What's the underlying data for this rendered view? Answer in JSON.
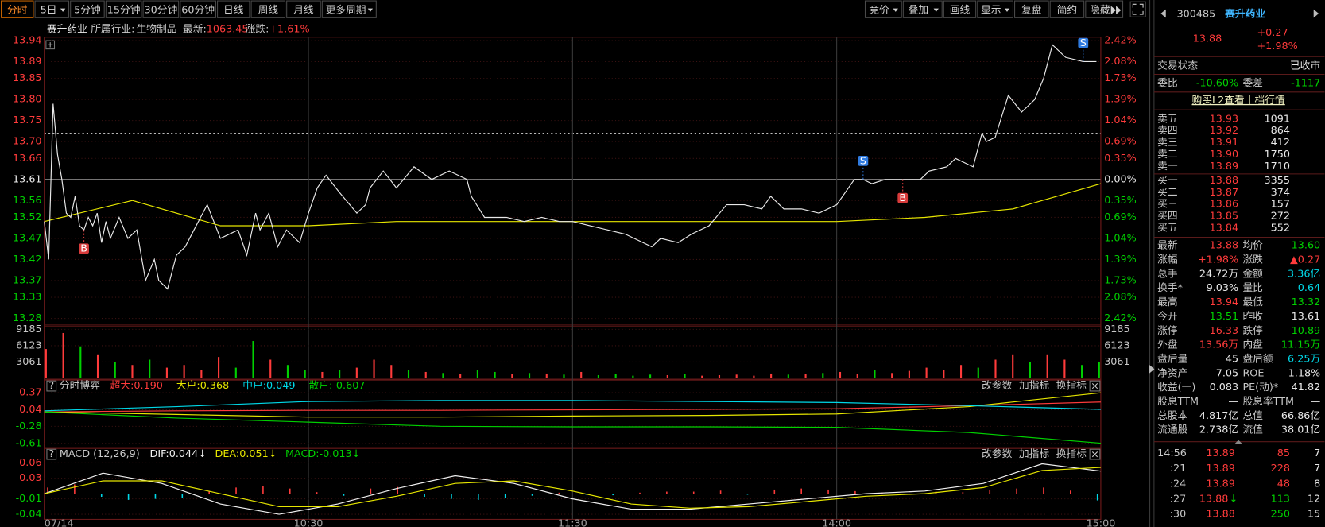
{
  "toolbar": {
    "tabs": [
      "分时",
      "5日",
      "5分钟",
      "15分钟",
      "30分钟",
      "60分钟",
      "日线",
      "周线",
      "月线",
      "更多周期"
    ],
    "tools": [
      "竞价",
      "叠加",
      "画线",
      "显示",
      "复盘",
      "简约",
      "隐藏"
    ]
  },
  "info": {
    "name": "赛升药业",
    "industry_label": "所属行业:",
    "industry": "生物制品",
    "latest_label": "最新:",
    "latest": "1063.45",
    "change_label": "涨跌:",
    "change": "+1.61%"
  },
  "price_chart": {
    "ylim": [
      13.28,
      13.94
    ],
    "yticks": [
      13.94,
      13.89,
      13.85,
      {
        "value": 13.8,
        "label": "13.80"
      },
      13.75,
      {
        "value": 13.7,
        "label": "13.70"
      },
      13.66,
      13.61,
      13.56,
      13.52,
      13.47,
      13.42,
      13.37,
      13.33,
      13.28
    ],
    "pct_labels": [
      "2.42%",
      "2.08%",
      "1.73%",
      "1.39%",
      "1.04%",
      "0.69%",
      "0.35%",
      "0.00%",
      "0.35%",
      "0.69%",
      "1.04%",
      "1.39%",
      "1.73%",
      "2.08%",
      "2.42%"
    ],
    "prev_close": 13.61,
    "ref_level": 13.72,
    "xlim": [
      0,
      240
    ],
    "xticks": [
      {
        "value": 0,
        "label": "07/14"
      },
      {
        "value": 60,
        "label": "10:30"
      },
      {
        "value": 120,
        "label": "11:30"
      },
      {
        "value": 180,
        "label": "14:00"
      },
      {
        "value": 240,
        "label": "15:00"
      }
    ],
    "t": [
      0,
      1,
      2,
      3,
      4,
      5,
      6,
      7,
      8,
      9,
      10,
      11,
      12,
      13,
      14,
      15,
      17,
      19,
      21,
      23,
      25,
      26,
      28,
      30,
      32,
      34,
      37,
      40,
      44,
      46,
      48,
      49,
      51,
      53,
      55,
      58,
      60,
      62,
      64,
      67,
      71,
      73,
      74,
      77,
      80,
      84,
      88,
      92,
      96,
      97,
      100,
      105,
      109,
      113,
      117,
      120,
      124,
      128,
      132,
      136,
      138,
      140,
      144,
      147,
      151,
      155,
      159,
      163,
      165,
      168,
      172,
      176,
      180,
      184,
      186,
      188,
      191,
      195,
      199,
      201,
      205,
      207,
      211,
      213,
      214,
      216,
      219,
      222,
      225,
      227,
      229,
      232,
      236,
      239
    ],
    "price": [
      13.51,
      13.42,
      13.79,
      13.67,
      13.61,
      13.53,
      13.52,
      13.57,
      13.5,
      13.49,
      13.52,
      13.5,
      13.53,
      13.46,
      13.51,
      13.47,
      13.52,
      13.47,
      13.49,
      13.37,
      13.42,
      13.37,
      13.35,
      13.43,
      13.45,
      13.49,
      13.55,
      13.47,
      13.49,
      13.43,
      13.53,
      13.49,
      13.53,
      13.45,
      13.49,
      13.46,
      13.53,
      13.59,
      13.62,
      13.58,
      13.53,
      13.55,
      13.59,
      13.63,
      13.59,
      13.64,
      13.61,
      13.63,
      13.61,
      13.57,
      13.52,
      13.52,
      13.51,
      13.52,
      13.51,
      13.51,
      13.5,
      13.49,
      13.48,
      13.46,
      13.45,
      13.47,
      13.46,
      13.48,
      13.5,
      13.55,
      13.55,
      13.54,
      13.57,
      13.54,
      13.54,
      13.53,
      13.55,
      13.61,
      13.61,
      13.6,
      13.61,
      13.61,
      13.61,
      13.63,
      13.64,
      13.66,
      13.64,
      13.72,
      13.7,
      13.71,
      13.81,
      13.77,
      13.8,
      13.85,
      13.93,
      13.9,
      13.89,
      13.89
    ],
    "avg_t": [
      0,
      20,
      40,
      60,
      80,
      100,
      120,
      140,
      160,
      180,
      200,
      220,
      240
    ],
    "avg": [
      13.51,
      13.56,
      13.5,
      13.5,
      13.51,
      13.51,
      13.51,
      13.51,
      13.51,
      13.51,
      13.52,
      13.54,
      13.6
    ],
    "price_color": "#e8e8e8",
    "avg_color": "#e6e600",
    "markers": {
      "buy": {
        "label": "B",
        "color": "#d83b3b",
        "indexes": [
          9,
          77
        ]
      },
      "sell": {
        "label": "S",
        "color": "#2f7be0",
        "indexes": [
          74,
          92
        ]
      }
    }
  },
  "volume": {
    "ylim": [
      0,
      9185
    ],
    "yticks": [
      9185,
      6123,
      3061
    ],
    "values": [
      5500,
      8500,
      6000,
      4500,
      3000,
      2500,
      3500,
      2000,
      2500,
      1500,
      4000,
      2000,
      7000,
      3500,
      2500,
      1500,
      1200,
      1500,
      2000,
      3500,
      2500,
      1500,
      1200,
      1000,
      800,
      1500,
      1200,
      800,
      1000,
      900,
      700,
      1200,
      600,
      800,
      500,
      700,
      600,
      800,
      500,
      600,
      700,
      500,
      900,
      700,
      800,
      1000,
      1200,
      800,
      1500,
      1000,
      1400,
      2000,
      1500,
      2500,
      2000,
      3500,
      4500,
      3000,
      4500,
      3500,
      2500,
      3000
    ]
  },
  "game_panel": {
    "title": "分时博弈",
    "ylim": [
      -0.61,
      0.37
    ],
    "yticks": [
      0.37,
      0.04,
      -0.28,
      -0.61
    ],
    "buttons": [
      "改参数",
      "加指标",
      "换指标"
    ],
    "lines": [
      {
        "label": "超大:0.190–",
        "color": "#ff3b3b",
        "values": [
          0.0,
          0.02,
          0.03,
          0.03,
          0.04,
          0.05,
          0.06,
          0.12,
          0.19
        ]
      },
      {
        "label": "大户:0.368–",
        "color": "#e6e600",
        "values": [
          0.0,
          -0.05,
          -0.1,
          -0.1,
          -0.08,
          -0.07,
          -0.04,
          0.1,
          0.368
        ]
      },
      {
        "label": "中户:0.049–",
        "color": "#00d8e8",
        "values": [
          0.02,
          0.1,
          0.2,
          0.22,
          0.22,
          0.2,
          0.18,
          0.12,
          0.049
        ]
      },
      {
        "label": "散户:-0.607–",
        "color": "#00d000",
        "values": [
          0.0,
          -0.12,
          -0.2,
          -0.28,
          -0.29,
          -0.29,
          -0.3,
          -0.4,
          -0.607
        ]
      }
    ]
  },
  "macd_panel": {
    "title": "MACD (12,26,9)",
    "ylim": [
      -0.04,
      0.06
    ],
    "yticks": [
      0.06,
      0.03,
      -0.01,
      -0.04
    ],
    "buttons": [
      "改参数",
      "加指标",
      "换指标"
    ],
    "lines": [
      {
        "label": "DIF:0.044↓",
        "color": "#f0f0f0",
        "values": [
          0.0,
          0.04,
          0.02,
          -0.02,
          -0.04,
          -0.02,
          0.01,
          0.035,
          0.02,
          -0.01,
          -0.03,
          -0.03,
          -0.02,
          -0.01,
          0.0,
          0.005,
          0.02,
          0.058,
          0.044
        ]
      },
      {
        "label": "DEA:0.051↓",
        "color": "#e6e600",
        "values": [
          0.0,
          0.025,
          0.025,
          0.0,
          -0.025,
          -0.025,
          -0.005,
          0.02,
          0.025,
          0.005,
          -0.02,
          -0.028,
          -0.025,
          -0.015,
          -0.005,
          0.0,
          0.012,
          0.045,
          0.051
        ]
      }
    ],
    "hist": {
      "label": "MACD:-0.013↓",
      "color": "#00d000",
      "up_color": "#ff3b3b",
      "down_color": "#00d8e8",
      "values": [
        0.012,
        0.018,
        -0.006,
        -0.012,
        -0.01,
        -0.008,
        0.005,
        0.012,
        0.015,
        0.01,
        0.003,
        -0.004,
        0.01,
        0.013,
        -0.006,
        -0.01,
        -0.012,
        -0.008,
        -0.004,
        0.002,
        -0.002,
        -0.003,
        0.002,
        0.004,
        0.004,
        0.006,
        -0.002,
        0.008,
        0.01,
        0.008,
        0.005,
        0.002,
        -0.002,
        0.004,
        0.003,
        0.008,
        0.01,
        0.012,
        0.006,
        -0.013
      ]
    }
  },
  "quote": {
    "code": "300485",
    "name": "赛升药业",
    "price": "13.88",
    "change": "+0.27",
    "pct": "+1.98%"
  },
  "status": {
    "label": "交易状态",
    "value": "已收市"
  },
  "weibi": {
    "label": "委比",
    "value": "-10.60%",
    "diff_label": "委差",
    "diff": "-1117"
  },
  "l2_link": "购买L2查看十档行情",
  "order_book": {
    "price_color": "#ff3b3b",
    "asks": [
      {
        "label": "卖五",
        "price": "13.93",
        "vol": "1091"
      },
      {
        "label": "卖四",
        "price": "13.92",
        "vol": "864"
      },
      {
        "label": "卖三",
        "price": "13.91",
        "vol": "412"
      },
      {
        "label": "卖二",
        "price": "13.90",
        "vol": "1750"
      },
      {
        "label": "卖一",
        "price": "13.89",
        "vol": "1710"
      }
    ],
    "bids": [
      {
        "label": "买一",
        "price": "13.88",
        "vol": "3355"
      },
      {
        "label": "买二",
        "price": "13.87",
        "vol": "374"
      },
      {
        "label": "买三",
        "price": "13.86",
        "vol": "157"
      },
      {
        "label": "买四",
        "price": "13.85",
        "vol": "272"
      },
      {
        "label": "买五",
        "price": "13.84",
        "vol": "552"
      }
    ]
  },
  "stats": [
    [
      {
        "label": "最新",
        "value": "13.88",
        "color": "#ff3b3b"
      },
      {
        "label": "均价",
        "value": "13.60",
        "color": "#00d000"
      }
    ],
    [
      {
        "label": "涨幅",
        "value": "+1.98%",
        "color": "#ff3b3b"
      },
      {
        "label": "涨跌",
        "value": "▲0.27",
        "color": "#ff3b3b"
      }
    ],
    [
      {
        "label": "总手",
        "value": "24.72万",
        "color": "#e8e8e8"
      },
      {
        "label": "金额",
        "value": "3.36亿",
        "color": "#00d8e8"
      }
    ],
    [
      {
        "label": "换手*",
        "value": "9.03%",
        "color": "#e8e8e8"
      },
      {
        "label": "量比",
        "value": "0.64",
        "color": "#00d8e8"
      }
    ],
    [
      {
        "label": "最高",
        "value": "13.94",
        "color": "#ff3b3b"
      },
      {
        "label": "最低",
        "value": "13.32",
        "color": "#00d000"
      }
    ],
    [
      {
        "label": "今开",
        "value": "13.51",
        "color": "#00d000"
      },
      {
        "label": "昨收",
        "value": "13.61",
        "color": "#e8e8e8"
      }
    ],
    [
      {
        "label": "涨停",
        "value": "16.33",
        "color": "#ff3b3b"
      },
      {
        "label": "跌停",
        "value": "10.89",
        "color": "#00d000"
      }
    ],
    [
      {
        "label": "外盘",
        "value": "13.56万",
        "color": "#ff3b3b"
      },
      {
        "label": "内盘",
        "value": "11.15万",
        "color": "#00d000"
      }
    ],
    [
      {
        "label": "盘后量",
        "value": "45",
        "color": "#e8e8e8"
      },
      {
        "label": "盘后额",
        "value": "6.25万",
        "color": "#00d8e8"
      }
    ],
    [
      {
        "label": "净资产",
        "value": "7.05",
        "color": "#e8e8e8"
      },
      {
        "label": "ROE",
        "value": "1.18%",
        "color": "#e8e8e8"
      }
    ],
    [
      {
        "label": "收益(一)",
        "value": "0.083",
        "color": "#e8e8e8"
      },
      {
        "label": "PE(动)*",
        "value": "41.82",
        "color": "#e8e8e8"
      }
    ],
    [
      {
        "label": "股息TTM",
        "value": "—",
        "color": "#e8e8e8"
      },
      {
        "label": "股息率TTM",
        "value": "—",
        "color": "#e8e8e8"
      }
    ],
    [
      {
        "label": "总股本",
        "value": "4.817亿",
        "color": "#e8e8e8"
      },
      {
        "label": "总值",
        "value": "66.86亿",
        "color": "#e8e8e8"
      }
    ],
    [
      {
        "label": "流通股",
        "value": "2.738亿",
        "color": "#e8e8e8"
      },
      {
        "label": "流值",
        "value": "38.01亿",
        "color": "#e8e8e8"
      }
    ]
  ],
  "ticks": [
    {
      "time": "14:56",
      "price": "13.89",
      "vol": "85",
      "vol_color": "#ff3b3b",
      "count": "7"
    },
    {
      "time": ":21",
      "price": "13.89",
      "vol": "228",
      "vol_color": "#ff3b3b",
      "count": "7"
    },
    {
      "time": ":24",
      "price": "13.89",
      "vol": "48",
      "vol_color": "#ff3b3b",
      "count": "8"
    },
    {
      "time": ":27",
      "price": "13.88",
      "arrow": "↓",
      "vol": "113",
      "vol_color": "#00d000",
      "count": "12"
    },
    {
      "time": ":30",
      "price": "13.88",
      "vol": "250",
      "vol_color": "#00d000",
      "count": "15"
    }
  ]
}
